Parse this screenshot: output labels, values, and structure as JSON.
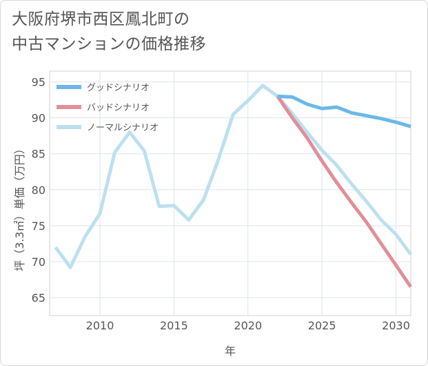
{
  "title": "大阪府堺市西区鳳北町の\n中古マンションの価格推移",
  "chart_data": {
    "type": "line",
    "x": [
      2007,
      2008,
      2009,
      2010,
      2011,
      2012,
      2013,
      2014,
      2015,
      2016,
      2017,
      2018,
      2019,
      2020,
      2021,
      2022,
      2023,
      2024,
      2025,
      2026,
      2027,
      2028,
      2029,
      2030,
      2031
    ],
    "series": [
      {
        "name": "グッドシナリオ",
        "color": "#6bb8e8",
        "values": [
          null,
          null,
          null,
          null,
          null,
          null,
          null,
          null,
          null,
          null,
          null,
          null,
          null,
          null,
          null,
          93.0,
          92.9,
          91.9,
          91.3,
          91.5,
          90.7,
          90.3,
          89.9,
          89.4,
          88.8
        ]
      },
      {
        "name": "バッドシナリオ",
        "color": "#e08f99",
        "values": [
          null,
          null,
          null,
          null,
          null,
          null,
          null,
          null,
          null,
          null,
          null,
          null,
          null,
          null,
          null,
          93.0,
          90.0,
          87.2,
          84.0,
          81.0,
          78.2,
          75.5,
          72.5,
          69.5,
          66.5
        ]
      },
      {
        "name": "ノーマルシナリオ",
        "color": "#bde0ef",
        "values": [
          72.0,
          69.2,
          73.5,
          76.7,
          85.2,
          88.0,
          85.4,
          77.7,
          77.8,
          75.8,
          78.6,
          84.2,
          90.5,
          92.4,
          94.5,
          93.0,
          90.6,
          88.0,
          85.5,
          83.4,
          80.8,
          78.4,
          75.8,
          73.8,
          71.0
        ]
      }
    ],
    "xlabel": "年",
    "ylabel": "坪（3.3㎡）単価（万円）",
    "xticks": [
      2010,
      2015,
      2020,
      2025,
      2030
    ],
    "yticks": [
      65,
      70,
      75,
      80,
      85,
      90,
      95
    ],
    "xlim": [
      2006.6,
      2031.0
    ],
    "ylim": [
      62.5,
      96.5
    ],
    "grid": true,
    "legend": "top-left"
  }
}
